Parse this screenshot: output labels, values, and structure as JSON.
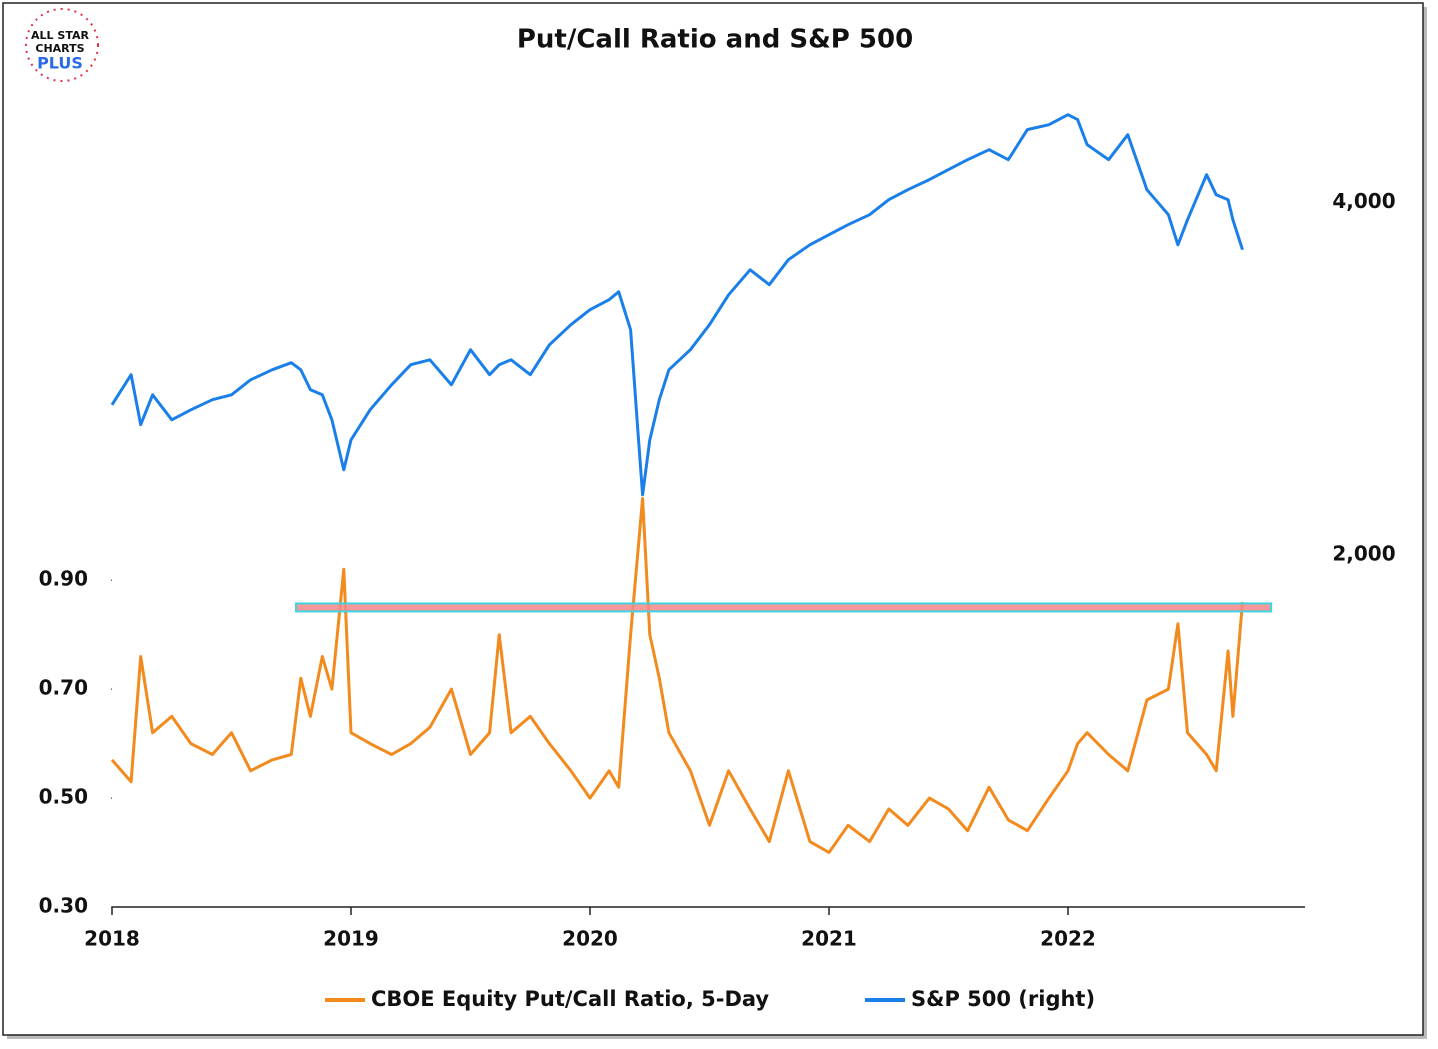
{
  "logo": [
    "ALL STAR",
    "CHARTS",
    "PLUS"
  ],
  "chart_data": {
    "type": "line",
    "title": "Put/Call Ratio and S&P 500",
    "x": [
      2018.0,
      2018.08,
      2018.12,
      2018.17,
      2018.25,
      2018.33,
      2018.42,
      2018.5,
      2018.58,
      2018.67,
      2018.75,
      2018.79,
      2018.83,
      2018.88,
      2018.92,
      2018.97,
      2019.0,
      2019.08,
      2019.17,
      2019.25,
      2019.33,
      2019.42,
      2019.5,
      2019.58,
      2019.62,
      2019.67,
      2019.75,
      2019.83,
      2019.92,
      2020.0,
      2020.08,
      2020.12,
      2020.17,
      2020.2,
      2020.22,
      2020.25,
      2020.29,
      2020.33,
      2020.42,
      2020.5,
      2020.58,
      2020.67,
      2020.75,
      2020.83,
      2020.92,
      2021.0,
      2021.08,
      2021.17,
      2021.25,
      2021.33,
      2021.42,
      2021.5,
      2021.58,
      2021.67,
      2021.75,
      2021.83,
      2021.92,
      2022.0,
      2022.04,
      2022.08,
      2022.17,
      2022.25,
      2022.33,
      2022.42,
      2022.46,
      2022.5,
      2022.58,
      2022.62,
      2022.67,
      2022.69,
      2022.73
    ],
    "series": [
      {
        "name": "CBOE Equity Put/Call Ratio, 5-Day",
        "color": "#f28a1e",
        "values": [
          0.57,
          0.53,
          0.76,
          0.62,
          0.65,
          0.6,
          0.58,
          0.62,
          0.55,
          0.57,
          0.58,
          0.72,
          0.65,
          0.76,
          0.7,
          0.92,
          0.62,
          0.6,
          0.58,
          0.6,
          0.63,
          0.7,
          0.58,
          0.62,
          0.8,
          0.62,
          0.65,
          0.6,
          0.55,
          0.5,
          0.55,
          0.52,
          0.8,
          0.95,
          1.05,
          0.8,
          0.72,
          0.62,
          0.55,
          0.45,
          0.55,
          0.48,
          0.42,
          0.55,
          0.42,
          0.4,
          0.45,
          0.42,
          0.48,
          0.45,
          0.5,
          0.48,
          0.44,
          0.52,
          0.46,
          0.44,
          0.5,
          0.55,
          0.6,
          0.62,
          0.58,
          0.55,
          0.68,
          0.7,
          0.82,
          0.62,
          0.58,
          0.55,
          0.77,
          0.65,
          0.86
        ]
      },
      {
        "name": "S&P 500 (right)",
        "color": "#1a7fe8",
        "axis": "y2",
        "values": [
          2852,
          3023,
          2739,
          2909,
          2767,
          2824,
          2881,
          2909,
          2994,
          3051,
          3091,
          3051,
          2938,
          2909,
          2767,
          2483,
          2653,
          2824,
          2966,
          3080,
          3108,
          2966,
          3165,
          3023,
          3080,
          3108,
          3023,
          3193,
          3307,
          3392,
          3449,
          3494,
          3278,
          2710,
          2341,
          2653,
          2881,
          3051,
          3165,
          3307,
          3477,
          3619,
          3534,
          3676,
          3761,
          3818,
          3875,
          3932,
          4017,
          4074,
          4131,
          4188,
          4244,
          4301,
          4244,
          4415,
          4443,
          4500,
          4472,
          4330,
          4244,
          4386,
          4074,
          3932,
          3761,
          3903,
          4159,
          4045,
          4017,
          3903,
          3733
        ]
      }
    ],
    "xlim": [
      2018,
      2023
    ],
    "xticks": [
      2018,
      2019,
      2020,
      2021,
      2022
    ],
    "ylim": [
      0.3,
      1.8
    ],
    "yticks": [
      {
        "value": 0.3,
        "label": "0.30"
      },
      {
        "value": 0.5,
        "label": "0.50"
      },
      {
        "value": 0.7,
        "label": "0.70"
      },
      {
        "value": 0.9,
        "label": "0.90"
      }
    ],
    "y2lim": [
      0,
      4640
    ],
    "y2ticks": [
      {
        "value": 2000,
        "label": "2,000"
      },
      {
        "value": 4000,
        "label": "4,000"
      }
    ],
    "reference_line": {
      "y": 0.85,
      "x": [
        2018.77,
        2022.85
      ],
      "color": "#f4878a",
      "edge": "#3fd3e0"
    },
    "legend": "bottom"
  }
}
